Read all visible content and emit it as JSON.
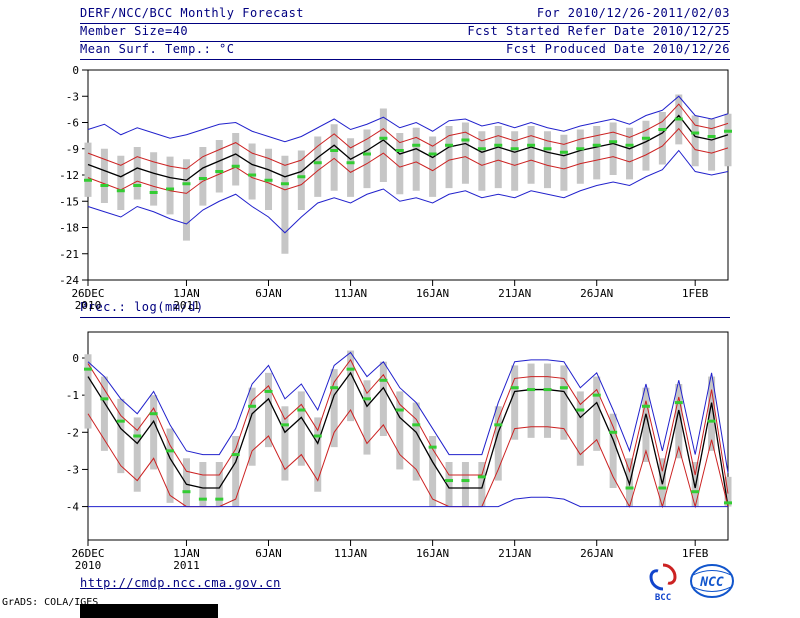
{
  "header": {
    "left": [
      "DERF/NCC/BCC Monthly Forecast",
      "Member Size=40",
      "Mean Surf. Temp.: °C"
    ],
    "right": [
      "For 2010/12/26-2011/02/03",
      "Fcst Started Refer Date 2010/12/25",
      "Fcst Produced Date 2010/12/26"
    ]
  },
  "precip_section_label": "Prec.: log(mm/d)",
  "footer": {
    "url": "http://cmdp.ncc.cma.gov.cn",
    "grads_credit": "GrADS: COLA/IGES",
    "logos": [
      {
        "name": "bcc-logo",
        "label": "BCC"
      },
      {
        "name": "ncc-logo",
        "label": "NCC"
      }
    ]
  },
  "colors": {
    "header_navy": "#000080",
    "blue_line": "#2222cc",
    "red_line": "#cc2222",
    "mean_black": "#000000",
    "green_marker": "#33cc33",
    "spread_gray": "#c6c6c6"
  },
  "chart_data": [
    {
      "id": "temperature-chart",
      "type": "line",
      "title": "Mean Surf. Temp.: °C",
      "n_points": 40,
      "ylim": [
        -24,
        0
      ],
      "yticks": [
        0,
        -3,
        -6,
        -9,
        -12,
        -15,
        -18,
        -21,
        -24
      ],
      "x_ticks": [
        {
          "i": 0,
          "label": "26DEC",
          "sub": "2010"
        },
        {
          "i": 6,
          "label": "1JAN",
          "sub": "2011"
        },
        {
          "i": 11,
          "label": "6JAN"
        },
        {
          "i": 16,
          "label": "11JAN"
        },
        {
          "i": 21,
          "label": "16JAN"
        },
        {
          "i": 26,
          "label": "21JAN"
        },
        {
          "i": 31,
          "label": "26JAN"
        },
        {
          "i": 37,
          "label": "1FEB"
        }
      ],
      "series": [
        {
          "name": "ensemble-spread-bars",
          "type": "bar-range",
          "color": "#c6c6c6",
          "low": [
            -14.5,
            -15.2,
            -16.0,
            -14.8,
            -15.5,
            -16.5,
            -19.5,
            -15.5,
            -14.0,
            -13.2,
            -14.8,
            -16.0,
            -21.0,
            -16.0,
            -14.5,
            -13.8,
            -14.5,
            -13.5,
            -12.8,
            -14.2,
            -13.8,
            -14.5,
            -13.5,
            -13.0,
            -13.8,
            -13.5,
            -13.8,
            -13.0,
            -13.5,
            -13.8,
            -13.0,
            -12.5,
            -12.0,
            -12.5,
            -11.5,
            -10.8,
            -8.5,
            -11.0,
            -11.5,
            -11.0
          ],
          "high": [
            -8.3,
            -9.0,
            -9.8,
            -8.8,
            -9.4,
            -9.9,
            -10.2,
            -8.8,
            -8.0,
            -7.2,
            -8.4,
            -9.0,
            -9.8,
            -9.2,
            -7.6,
            -6.2,
            -7.8,
            -6.8,
            -4.4,
            -7.2,
            -6.6,
            -7.6,
            -6.4,
            -6.0,
            -7.0,
            -6.4,
            -7.0,
            -6.4,
            -7.0,
            -7.4,
            -6.8,
            -6.4,
            -6.0,
            -6.6,
            -5.8,
            -4.8,
            -2.8,
            -5.2,
            -5.6,
            -5.0
          ]
        },
        {
          "name": "ensemble-max-line",
          "type": "line",
          "color": "#2222cc",
          "values": [
            -6.8,
            -6.2,
            -7.4,
            -6.6,
            -7.2,
            -7.8,
            -7.4,
            -6.8,
            -6.2,
            -6.0,
            -7.0,
            -7.6,
            -8.2,
            -7.6,
            -6.6,
            -5.6,
            -6.8,
            -6.2,
            -5.4,
            -6.6,
            -6.0,
            -7.0,
            -5.8,
            -5.6,
            -6.4,
            -6.0,
            -6.6,
            -6.0,
            -6.6,
            -7.0,
            -6.4,
            -6.0,
            -5.6,
            -6.2,
            -5.2,
            -4.6,
            -3.0,
            -5.2,
            -5.6,
            -5.0
          ]
        },
        {
          "name": "upper-quartile-line",
          "type": "line",
          "color": "#cc2222",
          "values": [
            -9.5,
            -10.2,
            -10.9,
            -9.9,
            -10.5,
            -11.0,
            -11.3,
            -9.9,
            -9.1,
            -8.3,
            -9.5,
            -10.1,
            -10.9,
            -10.3,
            -8.7,
            -7.3,
            -8.9,
            -7.9,
            -6.7,
            -8.3,
            -7.7,
            -8.7,
            -7.5,
            -7.1,
            -8.1,
            -7.5,
            -8.1,
            -7.5,
            -8.1,
            -8.5,
            -7.9,
            -7.5,
            -7.1,
            -7.7,
            -6.9,
            -5.9,
            -3.9,
            -6.3,
            -6.7,
            -6.1
          ]
        },
        {
          "name": "ensemble-mean-line",
          "type": "line",
          "color": "#000000",
          "width": 1.3,
          "values": [
            -10.8,
            -11.5,
            -12.2,
            -11.2,
            -11.8,
            -12.3,
            -12.6,
            -11.2,
            -10.4,
            -9.6,
            -10.8,
            -11.4,
            -12.2,
            -11.6,
            -10.0,
            -8.6,
            -10.2,
            -9.2,
            -8.0,
            -9.6,
            -9.0,
            -10.0,
            -8.8,
            -8.4,
            -9.4,
            -8.8,
            -9.4,
            -8.8,
            -9.4,
            -9.8,
            -9.2,
            -8.8,
            -8.4,
            -9.0,
            -8.2,
            -7.2,
            -5.2,
            -7.6,
            -8.0,
            -7.4
          ]
        },
        {
          "name": "lower-quartile-line",
          "type": "line",
          "color": "#cc2222",
          "values": [
            -12.3,
            -13.0,
            -13.7,
            -12.7,
            -13.3,
            -13.8,
            -14.1,
            -12.7,
            -11.9,
            -11.1,
            -12.3,
            -12.9,
            -13.7,
            -13.1,
            -11.5,
            -10.1,
            -11.7,
            -10.7,
            -9.5,
            -11.1,
            -10.5,
            -11.5,
            -10.3,
            -9.9,
            -10.9,
            -10.3,
            -10.9,
            -10.3,
            -10.9,
            -11.3,
            -10.7,
            -10.3,
            -9.9,
            -10.5,
            -9.7,
            -8.7,
            -6.7,
            -9.1,
            -9.5,
            -8.9
          ]
        },
        {
          "name": "ensemble-min-line",
          "type": "line",
          "color": "#2222cc",
          "values": [
            -15.6,
            -16.2,
            -16.8,
            -15.6,
            -16.2,
            -17.0,
            -17.6,
            -16.0,
            -15.0,
            -14.2,
            -15.6,
            -16.8,
            -18.6,
            -16.8,
            -15.2,
            -14.6,
            -15.2,
            -14.2,
            -13.6,
            -15.0,
            -14.6,
            -15.2,
            -14.2,
            -13.8,
            -14.6,
            -14.2,
            -14.6,
            -13.8,
            -14.2,
            -14.6,
            -13.8,
            -13.2,
            -12.8,
            -13.2,
            -12.2,
            -11.4,
            -9.2,
            -11.6,
            -12.0,
            -11.6
          ]
        },
        {
          "name": "green-dash-markers",
          "type": "dash-markers",
          "color": "#33cc33",
          "values": [
            -12.6,
            -13.2,
            -13.8,
            -13.2,
            -14.0,
            -13.6,
            -13.0,
            -12.4,
            -11.6,
            -11.0,
            -12.0,
            -12.6,
            -13.0,
            -12.2,
            -10.6,
            -9.2,
            -10.6,
            -9.6,
            -7.8,
            -9.2,
            -8.6,
            -9.6,
            -8.6,
            -8.0,
            -9.0,
            -8.6,
            -9.0,
            -8.6,
            -9.0,
            -9.4,
            -9.0,
            -8.6,
            -8.2,
            -8.6,
            -7.8,
            -6.8,
            -5.6,
            -7.2,
            -7.6,
            -7.0
          ]
        }
      ]
    },
    {
      "id": "precipitation-chart",
      "type": "line",
      "title": "Prec.: log(mm/d)",
      "n_points": 40,
      "ylim": [
        -4.9,
        0.7
      ],
      "yticks": [
        0,
        -1,
        -2,
        -3,
        -4
      ],
      "x_ticks": [
        {
          "i": 0,
          "label": "26DEC",
          "sub": "2010"
        },
        {
          "i": 6,
          "label": "1JAN",
          "sub": "2011"
        },
        {
          "i": 11,
          "label": "6JAN"
        },
        {
          "i": 16,
          "label": "11JAN"
        },
        {
          "i": 21,
          "label": "16JAN"
        },
        {
          "i": 26,
          "label": "21JAN"
        },
        {
          "i": 31,
          "label": "26JAN"
        },
        {
          "i": 37,
          "label": "1FEB"
        }
      ],
      "series": [
        {
          "name": "ensemble-spread-bars",
          "type": "bar-range",
          "color": "#c6c6c6",
          "low": [
            -1.9,
            -2.5,
            -3.1,
            -3.6,
            -3.0,
            -3.9,
            -4,
            -4,
            -4,
            -4,
            -2.9,
            -2.4,
            -3.3,
            -2.9,
            -3.6,
            -2.4,
            -1.7,
            -2.6,
            -2.1,
            -3.0,
            -3.3,
            -4,
            -4,
            -4,
            -4,
            -3.3,
            -2.2,
            -2.15,
            -2.15,
            -2.2,
            -2.9,
            -2.5,
            -3.5,
            -4,
            -2.8,
            -4,
            -2.7,
            -4,
            -2.5,
            -4
          ],
          "high": [
            0.1,
            -0.5,
            -1.1,
            -1.6,
            -1.0,
            -1.9,
            -2.7,
            -2.8,
            -2.8,
            -2.1,
            -0.8,
            -0.4,
            -1.3,
            -0.9,
            -1.6,
            -0.3,
            0.2,
            -0.6,
            -0.1,
            -0.9,
            -1.2,
            -2.1,
            -2.8,
            -2.8,
            -2.8,
            -1.3,
            -0.2,
            -0.15,
            -0.15,
            -0.2,
            -0.9,
            -0.5,
            -1.5,
            -2.7,
            -0.8,
            -2.7,
            -0.7,
            -2.8,
            -0.5,
            -3.2
          ]
        },
        {
          "name": "ensemble-max-line",
          "type": "line",
          "color": "#2222cc",
          "values": [
            -0.1,
            -0.5,
            -1.1,
            -1.5,
            -0.9,
            -1.8,
            -2.5,
            -2.6,
            -2.6,
            -1.9,
            -0.7,
            -0.2,
            -1.1,
            -0.7,
            -1.4,
            -0.2,
            0.15,
            -0.5,
            -0.1,
            -0.8,
            -1.2,
            -1.9,
            -2.6,
            -2.6,
            -2.6,
            -1.2,
            -0.1,
            -0.05,
            -0.05,
            -0.1,
            -0.8,
            -0.4,
            -1.4,
            -2.5,
            -0.7,
            -2.5,
            -0.6,
            -2.6,
            -0.4,
            -3.1
          ]
        },
        {
          "name": "upper-quartile-line",
          "type": "line",
          "color": "#cc2222",
          "values": [
            -0.15,
            -0.85,
            -1.55,
            -1.95,
            -1.35,
            -2.35,
            -3.05,
            -3.15,
            -3.15,
            -2.45,
            -1.15,
            -0.75,
            -1.65,
            -1.25,
            -1.95,
            -0.65,
            -0.05,
            -0.95,
            -0.45,
            -1.25,
            -1.65,
            -2.45,
            -3.15,
            -3.15,
            -3.15,
            -1.65,
            -0.55,
            -0.5,
            -0.5,
            -0.55,
            -1.25,
            -0.85,
            -1.85,
            -3.05,
            -1.15,
            -3.05,
            -1.05,
            -3.15,
            -0.85,
            -3.65
          ]
        },
        {
          "name": "ensemble-mean-line",
          "type": "line",
          "color": "#000000",
          "width": 1.3,
          "values": [
            -0.5,
            -1.2,
            -1.9,
            -2.3,
            -1.7,
            -2.7,
            -3.4,
            -3.5,
            -3.5,
            -2.8,
            -1.5,
            -1.1,
            -2.0,
            -1.6,
            -2.3,
            -1.0,
            -0.4,
            -1.3,
            -0.8,
            -1.6,
            -2.0,
            -2.8,
            -3.5,
            -3.5,
            -3.5,
            -2.0,
            -0.9,
            -0.85,
            -0.85,
            -0.9,
            -1.6,
            -1.2,
            -2.2,
            -3.4,
            -1.5,
            -3.4,
            -1.4,
            -3.5,
            -1.2,
            -4.0
          ]
        },
        {
          "name": "lower-quartile-line",
          "type": "line",
          "color": "#cc2222",
          "values": [
            -1.5,
            -2.2,
            -2.9,
            -3.3,
            -2.7,
            -3.7,
            -4,
            -4,
            -4,
            -3.8,
            -2.5,
            -2.1,
            -3.0,
            -2.6,
            -3.3,
            -2.0,
            -1.4,
            -2.3,
            -1.8,
            -2.6,
            -3.0,
            -3.8,
            -4,
            -4,
            -4,
            -3.0,
            -1.9,
            -1.85,
            -1.85,
            -1.9,
            -2.6,
            -2.2,
            -3.2,
            -4,
            -2.5,
            -4,
            -2.4,
            -4,
            -2.2,
            -4
          ]
        },
        {
          "name": "ensemble-min-line",
          "type": "line",
          "color": "#2222cc",
          "values": [
            -4,
            -4,
            -4,
            -4,
            -4,
            -4,
            -4,
            -4,
            -4,
            -4,
            -4,
            -4,
            -4,
            -4,
            -4,
            -4,
            -4,
            -4,
            -4,
            -4,
            -4,
            -4,
            -4,
            -4,
            -4,
            -4,
            -3.8,
            -3.75,
            -3.75,
            -3.8,
            -4,
            -4,
            -4,
            -4,
            -4,
            -4,
            -4,
            -4,
            -4,
            -4
          ]
        },
        {
          "name": "green-dash-markers",
          "type": "dash-markers",
          "color": "#33cc33",
          "values": [
            -0.3,
            -1.1,
            -1.7,
            -2.1,
            -1.5,
            -2.5,
            -3.6,
            -3.8,
            -3.8,
            -2.6,
            -1.3,
            -0.9,
            -1.8,
            -1.4,
            -2.1,
            -0.8,
            -0.3,
            -1.1,
            -0.6,
            -1.4,
            -1.8,
            -2.4,
            -3.3,
            -3.3,
            -3.2,
            -1.8,
            -0.8,
            -0.85,
            -0.85,
            -0.8,
            -1.4,
            -1.0,
            -2.0,
            -3.5,
            -1.3,
            -3.5,
            -1.2,
            -3.6,
            -1.7,
            -3.9
          ]
        }
      ]
    }
  ]
}
